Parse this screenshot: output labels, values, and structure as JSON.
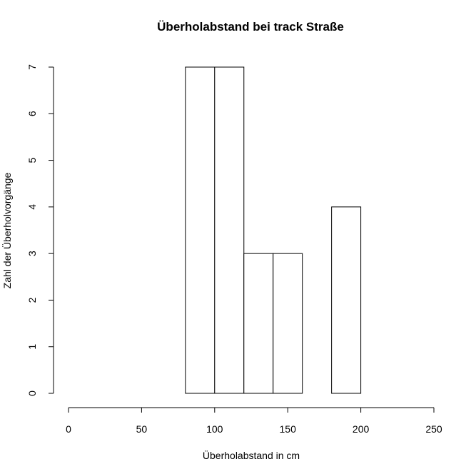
{
  "chart_data": {
    "type": "bar",
    "title": "Überholabstand bei track  Straße",
    "xlabel": "Überholabstand in cm",
    "ylabel": "Zahl der Überholvorgänge",
    "xlim": [
      0,
      250
    ],
    "ylim": [
      0,
      7
    ],
    "x_ticks": [
      "0",
      "50",
      "100",
      "150",
      "200",
      "250"
    ],
    "y_ticks": [
      "0",
      "1",
      "2",
      "3",
      "4",
      "5",
      "6",
      "7"
    ],
    "bins": [
      {
        "x0": 80,
        "x1": 100,
        "count": 7
      },
      {
        "x0": 100,
        "x1": 120,
        "count": 7
      },
      {
        "x0": 120,
        "x1": 140,
        "count": 3
      },
      {
        "x0": 140,
        "x1": 160,
        "count": 3
      },
      {
        "x0": 160,
        "x1": 180,
        "count": 0
      },
      {
        "x0": 180,
        "x1": 200,
        "count": 4
      }
    ],
    "grid": false,
    "bar_fill": "#ffffff",
    "bar_stroke": "#000000"
  }
}
